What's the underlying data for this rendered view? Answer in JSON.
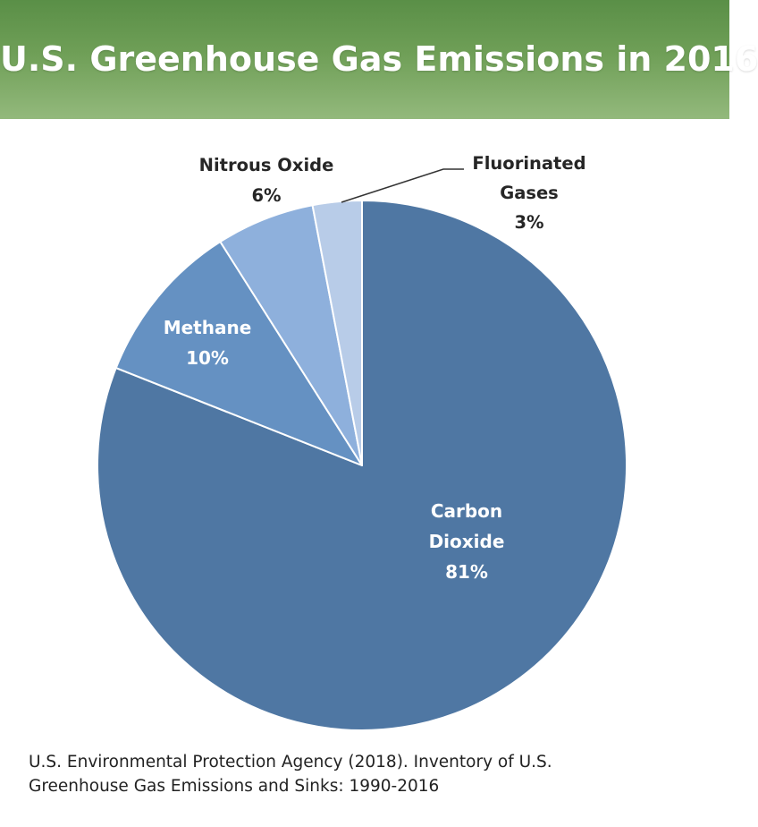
{
  "title": "U.S. Greenhouse Gas Emissions in 2016",
  "chart_data": {
    "type": "pie",
    "title": "U.S. Greenhouse Gas Emissions in 2016",
    "start": "12 o'clock",
    "direction": "clockwise",
    "slices": [
      {
        "name": "Carbon Dioxide",
        "label_lines": [
          "Carbon",
          "Dioxide"
        ],
        "value": 81,
        "pct_label": "81%",
        "color": "#4f77a3",
        "label_color": "#ffffff"
      },
      {
        "name": "Methane",
        "label_lines": [
          "Methane"
        ],
        "value": 10,
        "pct_label": "10%",
        "color": "#6591c2",
        "label_color": "#ffffff"
      },
      {
        "name": "Nitrous Oxide",
        "label_lines": [
          "Nitrous Oxide"
        ],
        "value": 6,
        "pct_label": "6%",
        "color": "#8eb0dc",
        "label_color": "#262626"
      },
      {
        "name": "Fluorinated Gases",
        "label_lines": [
          "Fluorinated",
          "Gases"
        ],
        "value": 3,
        "pct_label": "3%",
        "color": "#b8cce8",
        "label_color": "#262626"
      }
    ]
  },
  "source": {
    "line1": "U.S. Environmental Protection Agency (2018). Inventory of U.S.",
    "line2": "Greenhouse Gas Emissions and Sinks: 1990-2016"
  }
}
